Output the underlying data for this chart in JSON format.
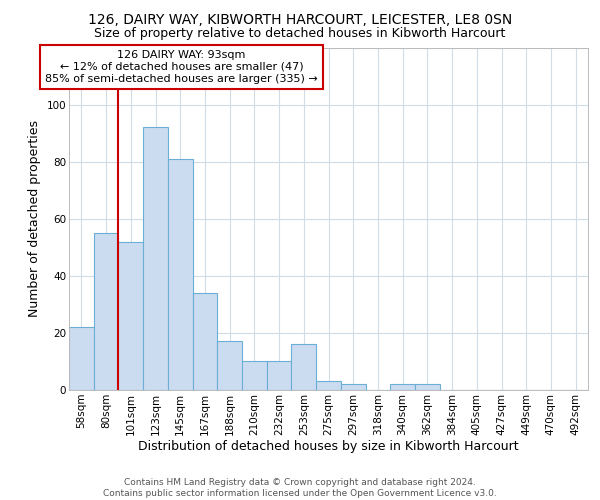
{
  "title": "126, DAIRY WAY, KIBWORTH HARCOURT, LEICESTER, LE8 0SN",
  "subtitle": "Size of property relative to detached houses in Kibworth Harcourt",
  "xlabel": "Distribution of detached houses by size in Kibworth Harcourt",
  "ylabel": "Number of detached properties",
  "categories": [
    "58sqm",
    "80sqm",
    "101sqm",
    "123sqm",
    "145sqm",
    "167sqm",
    "188sqm",
    "210sqm",
    "232sqm",
    "253sqm",
    "275sqm",
    "297sqm",
    "318sqm",
    "340sqm",
    "362sqm",
    "384sqm",
    "405sqm",
    "427sqm",
    "449sqm",
    "470sqm",
    "492sqm"
  ],
  "values": [
    22,
    55,
    52,
    92,
    81,
    34,
    17,
    10,
    10,
    16,
    3,
    2,
    0,
    2,
    2,
    0,
    0,
    0,
    0,
    0,
    0
  ],
  "bar_color": "#ccdcf0",
  "bar_edge_color": "#6baed6",
  "red_line_index": 2,
  "red_line_color": "#cc0000",
  "annotation_box_text": "126 DAIRY WAY: 93sqm\n← 12% of detached houses are smaller (47)\n85% of semi-detached houses are larger (335) →",
  "annotation_box_edge_color": "#cc0000",
  "ylim": [
    0,
    120
  ],
  "yticks": [
    0,
    20,
    40,
    60,
    80,
    100,
    120
  ],
  "plot_bg_color": "#ffffff",
  "grid_color": "#d0dce8",
  "footer_text": "Contains HM Land Registry data © Crown copyright and database right 2024.\nContains public sector information licensed under the Open Government Licence v3.0.",
  "title_fontsize": 10,
  "subtitle_fontsize": 9,
  "axis_label_fontsize": 9,
  "tick_fontsize": 7.5,
  "annotation_fontsize": 8,
  "footer_fontsize": 6.5
}
